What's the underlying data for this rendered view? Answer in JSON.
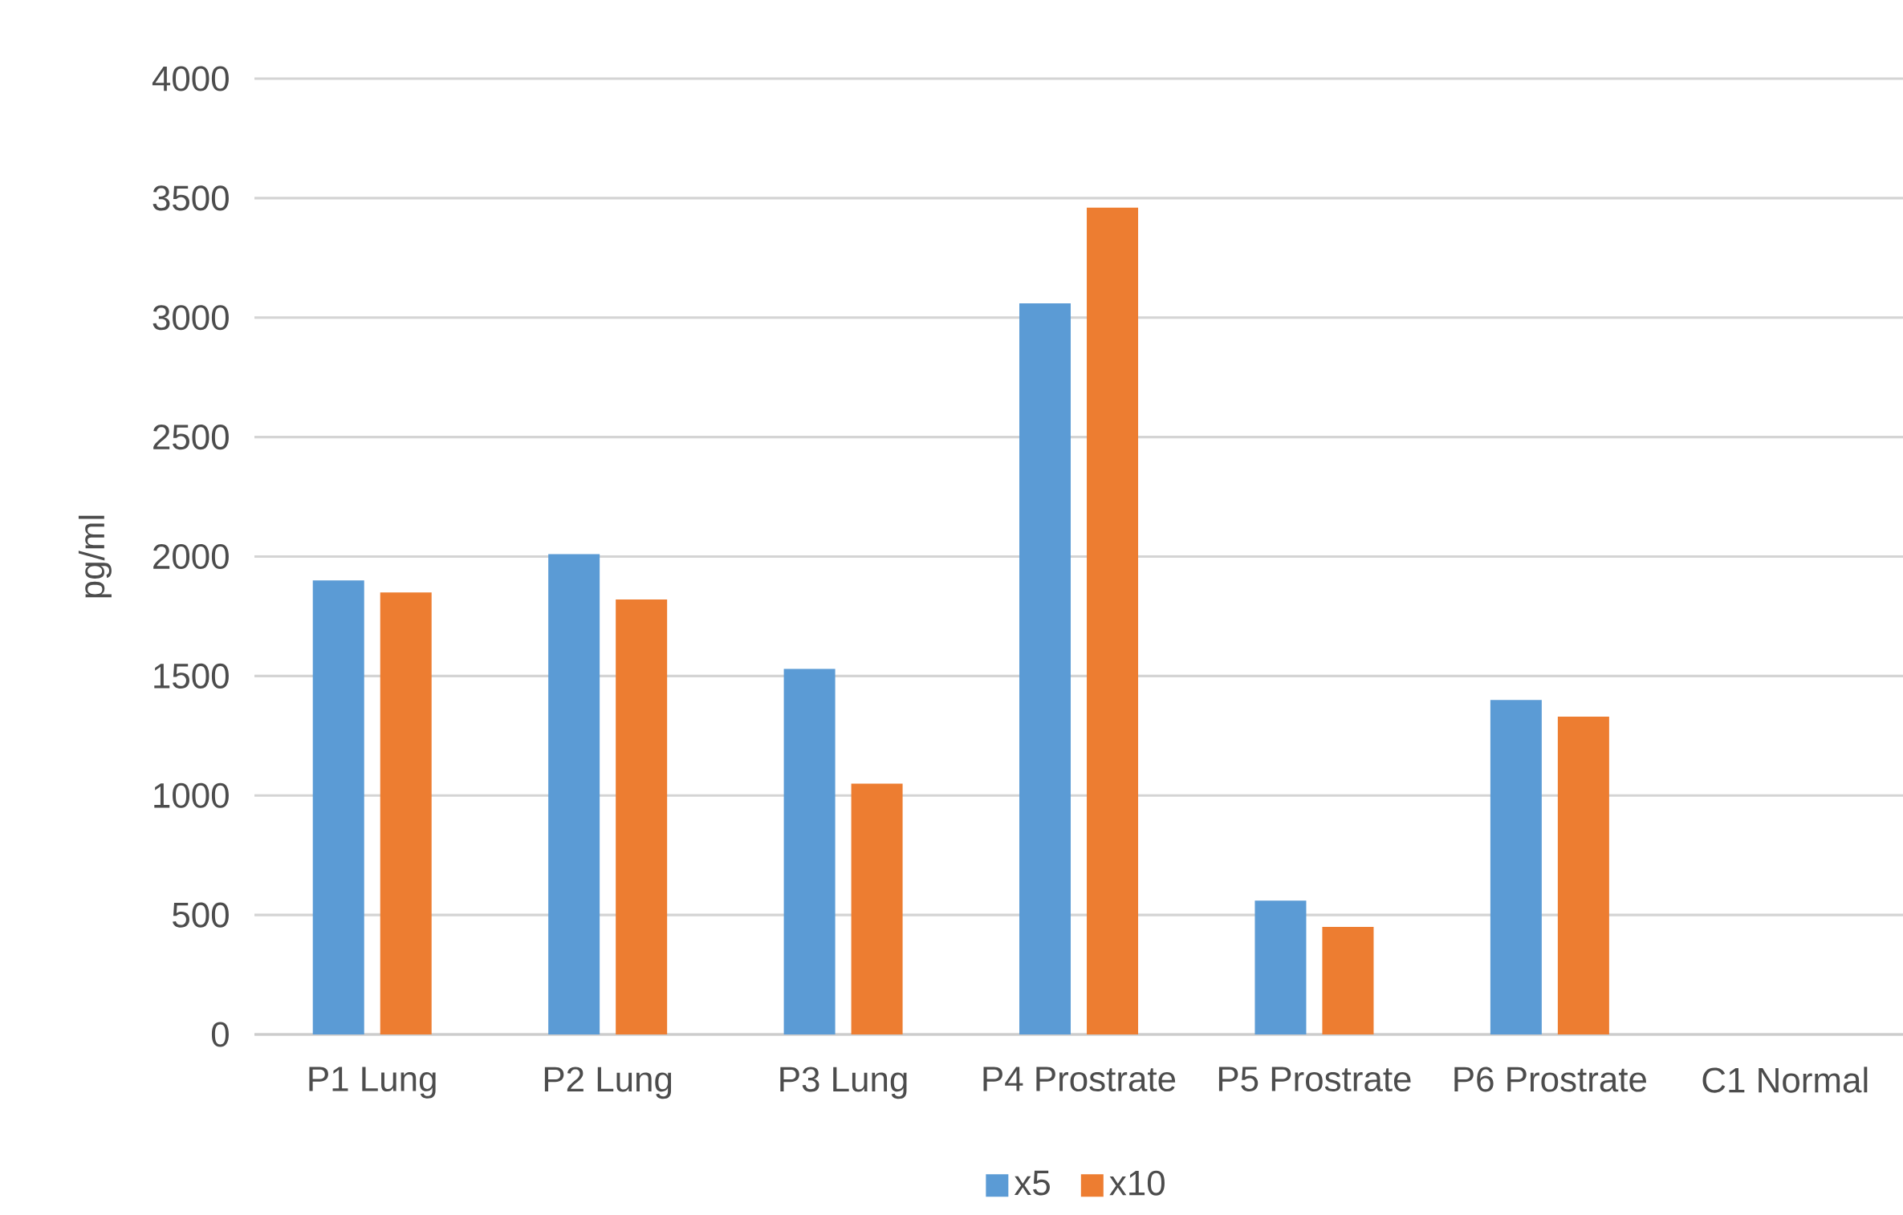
{
  "chart_data": {
    "type": "bar",
    "ylabel": "pg/ml",
    "categories": [
      "P1 Lung",
      "P2 Lung",
      "P3 Lung",
      "P4 Prostrate",
      "P5 Prostrate",
      "P6 Prostrate",
      "C1 Normal"
    ],
    "series": [
      {
        "name": "x5",
        "color": "#5b9bd5",
        "values": [
          1900,
          2010,
          1530,
          3060,
          560,
          1400,
          null
        ]
      },
      {
        "name": "x10",
        "color": "#ed7d31",
        "values": [
          1850,
          1820,
          1050,
          3460,
          450,
          1330,
          null
        ]
      }
    ],
    "ylim": [
      0,
      4000
    ],
    "yticks": [
      0,
      500,
      1000,
      1500,
      2000,
      2500,
      3000,
      3500,
      4000
    ],
    "grid": "y",
    "legend": "bottom"
  }
}
